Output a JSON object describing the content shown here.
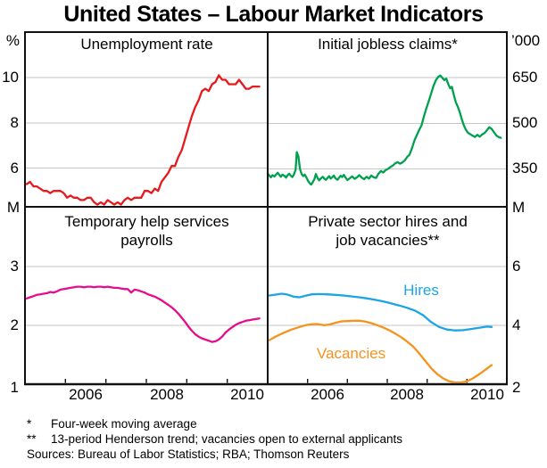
{
  "title": "United States – Labour Market Indicators",
  "colors": {
    "red": "#e8191c",
    "green": "#00a14e",
    "magenta": "#e50c8d",
    "blue": "#1ba5e4",
    "orange": "#f6921e",
    "grid": "#c6c6c6",
    "axis": "#8f8f8f",
    "border": "#111111",
    "text": "#000000"
  },
  "footnotes": {
    "fn1": {
      "marker": "*",
      "text": "Four-week moving average"
    },
    "fn2": {
      "marker": "**",
      "text": "13-period Henderson trend; vacancies open to external applicants"
    },
    "sources": "Sources: Bureau of Labor Statistics; RBA; Thomson Reuters"
  },
  "chart_data": [
    {
      "type": "line",
      "position": "top-left",
      "title": "Unemployment rate",
      "unit": "%",
      "yaxis_side": "left",
      "ylim": [
        4.3,
        12
      ],
      "yticks": [
        6,
        8,
        10
      ],
      "xlim": [
        2005,
        2011
      ],
      "show_xaxis": false,
      "series": [
        {
          "name": "Unemployment rate",
          "color": "red",
          "start": 2005.042,
          "step": 0.083333,
          "values": [
            5.3,
            5.4,
            5.2,
            5.2,
            5.1,
            5.0,
            5.0,
            4.9,
            5.0,
            5.0,
            5.0,
            4.9,
            4.7,
            4.8,
            4.7,
            4.7,
            4.6,
            4.6,
            4.7,
            4.7,
            4.5,
            4.4,
            4.5,
            4.4,
            4.6,
            4.5,
            4.4,
            4.5,
            4.4,
            4.6,
            4.7,
            4.6,
            4.7,
            4.7,
            4.7,
            5.0,
            5.0,
            4.9,
            5.1,
            5.0,
            5.4,
            5.6,
            5.8,
            6.1,
            6.1,
            6.5,
            6.8,
            7.3,
            7.8,
            8.3,
            8.7,
            9.0,
            9.4,
            9.5,
            9.4,
            9.7,
            9.8,
            10.1,
            9.9,
            9.9,
            9.7,
            9.7,
            9.7,
            9.9,
            9.7,
            9.5,
            9.5,
            9.6,
            9.6,
            9.6
          ]
        }
      ]
    },
    {
      "type": "line",
      "position": "top-right",
      "title": "Initial jobless claims*",
      "unit": "’000",
      "yaxis_side": "right",
      "ylim": [
        225,
        800
      ],
      "yticks": [
        350,
        500,
        650
      ],
      "xlim": [
        2005,
        2011
      ],
      "show_xaxis": false,
      "series": [
        {
          "name": "Initial jobless claims (four-week moving average)",
          "color": "green",
          "points": [
            [
              2005.0,
              334
            ],
            [
              2005.04,
              328
            ],
            [
              2005.08,
              322
            ],
            [
              2005.12,
              329
            ],
            [
              2005.17,
              325
            ],
            [
              2005.21,
              331
            ],
            [
              2005.25,
              337
            ],
            [
              2005.29,
              330
            ],
            [
              2005.33,
              324
            ],
            [
              2005.37,
              331
            ],
            [
              2005.42,
              327
            ],
            [
              2005.46,
              321
            ],
            [
              2005.5,
              329
            ],
            [
              2005.54,
              334
            ],
            [
              2005.58,
              327
            ],
            [
              2005.62,
              323
            ],
            [
              2005.66,
              332
            ],
            [
              2005.7,
              347
            ],
            [
              2005.73,
              405
            ],
            [
              2005.77,
              391
            ],
            [
              2005.81,
              349
            ],
            [
              2005.85,
              333
            ],
            [
              2005.89,
              326
            ],
            [
              2005.93,
              331
            ],
            [
              2005.97,
              322
            ],
            [
              2006.01,
              311
            ],
            [
              2006.05,
              303
            ],
            [
              2006.09,
              298
            ],
            [
              2006.13,
              306
            ],
            [
              2006.17,
              316
            ],
            [
              2006.21,
              333
            ],
            [
              2006.25,
              320
            ],
            [
              2006.29,
              312
            ],
            [
              2006.33,
              318
            ],
            [
              2006.38,
              324
            ],
            [
              2006.42,
              318
            ],
            [
              2006.46,
              314
            ],
            [
              2006.5,
              320
            ],
            [
              2006.54,
              326
            ],
            [
              2006.58,
              318
            ],
            [
              2006.62,
              322
            ],
            [
              2006.66,
              328
            ],
            [
              2006.7,
              319
            ],
            [
              2006.75,
              314
            ],
            [
              2006.79,
              321
            ],
            [
              2006.83,
              327
            ],
            [
              2006.87,
              323
            ],
            [
              2006.91,
              330
            ],
            [
              2006.95,
              322
            ],
            [
              2007.0,
              313
            ],
            [
              2007.06,
              319
            ],
            [
              2007.12,
              325
            ],
            [
              2007.18,
              317
            ],
            [
              2007.24,
              322
            ],
            [
              2007.3,
              329
            ],
            [
              2007.36,
              321
            ],
            [
              2007.42,
              316
            ],
            [
              2007.48,
              324
            ],
            [
              2007.54,
              318
            ],
            [
              2007.6,
              328
            ],
            [
              2007.66,
              322
            ],
            [
              2007.72,
              320
            ],
            [
              2007.78,
              334
            ],
            [
              2007.84,
              343
            ],
            [
              2007.9,
              338
            ],
            [
              2007.96,
              346
            ],
            [
              2008.02,
              350
            ],
            [
              2008.08,
              356
            ],
            [
              2008.14,
              361
            ],
            [
              2008.2,
              368
            ],
            [
              2008.26,
              372
            ],
            [
              2008.32,
              367
            ],
            [
              2008.38,
              371
            ],
            [
              2008.44,
              378
            ],
            [
              2008.5,
              389
            ],
            [
              2008.56,
              397
            ],
            [
              2008.62,
              418
            ],
            [
              2008.68,
              443
            ],
            [
              2008.74,
              461
            ],
            [
              2008.8,
              478
            ],
            [
              2008.86,
              493
            ],
            [
              2008.92,
              523
            ],
            [
              2008.98,
              549
            ],
            [
              2009.04,
              573
            ],
            [
              2009.1,
              597
            ],
            [
              2009.16,
              623
            ],
            [
              2009.22,
              642
            ],
            [
              2009.28,
              653
            ],
            [
              2009.33,
              657
            ],
            [
              2009.38,
              650
            ],
            [
              2009.43,
              642
            ],
            [
              2009.48,
              647
            ],
            [
              2009.53,
              629
            ],
            [
              2009.58,
              615
            ],
            [
              2009.62,
              620
            ],
            [
              2009.67,
              593
            ],
            [
              2009.72,
              569
            ],
            [
              2009.77,
              554
            ],
            [
              2009.82,
              536
            ],
            [
              2009.87,
              513
            ],
            [
              2009.92,
              493
            ],
            [
              2009.97,
              479
            ],
            [
              2010.02,
              469
            ],
            [
              2010.08,
              464
            ],
            [
              2010.14,
              459
            ],
            [
              2010.2,
              455
            ],
            [
              2010.26,
              462
            ],
            [
              2010.32,
              456
            ],
            [
              2010.38,
              463
            ],
            [
              2010.44,
              468
            ],
            [
              2010.5,
              477
            ],
            [
              2010.56,
              487
            ],
            [
              2010.62,
              481
            ],
            [
              2010.68,
              470
            ],
            [
              2010.74,
              459
            ],
            [
              2010.8,
              454
            ],
            [
              2010.85,
              452
            ]
          ]
        }
      ]
    },
    {
      "type": "line",
      "position": "bottom-left",
      "title": "Temporary help services payrolls",
      "title_lines": [
        "Temporary help services",
        "payrolls"
      ],
      "unit": "M",
      "yaxis_side": "left",
      "ylim": [
        1,
        4.02
      ],
      "yticks": [
        1,
        2,
        3
      ],
      "xlim": [
        2005,
        2011
      ],
      "show_xaxis": true,
      "xticks": [
        2006,
        2007,
        2008,
        2009,
        2010
      ],
      "xtick_labels": [
        {
          "text": "2006",
          "x": 2006.5
        },
        {
          "text": "2008",
          "x": 2008.5
        },
        {
          "text": "2010",
          "x": 2010.5
        }
      ],
      "series": [
        {
          "name": "Temporary help services payrolls",
          "color": "magenta",
          "start": 2005.042,
          "step": 0.083333,
          "values": [
            2.46,
            2.48,
            2.5,
            2.52,
            2.53,
            2.54,
            2.55,
            2.57,
            2.56,
            2.58,
            2.61,
            2.62,
            2.63,
            2.64,
            2.65,
            2.66,
            2.66,
            2.65,
            2.66,
            2.66,
            2.65,
            2.66,
            2.66,
            2.65,
            2.66,
            2.65,
            2.64,
            2.64,
            2.63,
            2.62,
            2.62,
            2.56,
            2.61,
            2.6,
            2.58,
            2.56,
            2.53,
            2.51,
            2.49,
            2.46,
            2.43,
            2.39,
            2.35,
            2.31,
            2.26,
            2.2,
            2.13,
            2.06,
            1.98,
            1.91,
            1.85,
            1.81,
            1.78,
            1.76,
            1.74,
            1.72,
            1.73,
            1.76,
            1.81,
            1.88,
            1.93,
            1.97,
            2.01,
            2.04,
            2.06,
            2.08,
            2.09,
            2.1,
            2.11,
            2.12
          ]
        }
      ]
    },
    {
      "type": "line",
      "position": "bottom-right",
      "title": "Private sector hires and job vacancies**",
      "title_lines": [
        "Private sector hires and",
        "job vacancies**"
      ],
      "unit": "M",
      "yaxis_side": "right",
      "ylim": [
        2,
        8.04
      ],
      "yticks": [
        2,
        4,
        6
      ],
      "xlim": [
        2005,
        2011
      ],
      "show_xaxis": true,
      "xticks": [
        2006,
        2007,
        2008,
        2009,
        2010
      ],
      "xtick_labels": [
        {
          "text": "2006",
          "x": 2006.5
        },
        {
          "text": "2008",
          "x": 2008.5
        },
        {
          "text": "2010",
          "x": 2010.5
        }
      ],
      "series": [
        {
          "name": "Hires",
          "label": "Hires",
          "color": "blue",
          "points": [
            [
              2005.04,
              5.02
            ],
            [
              2005.2,
              5.05
            ],
            [
              2005.35,
              5.08
            ],
            [
              2005.5,
              5.05
            ],
            [
              2005.65,
              4.98
            ],
            [
              2005.8,
              4.96
            ],
            [
              2005.95,
              5.01
            ],
            [
              2006.1,
              5.06
            ],
            [
              2006.3,
              5.07
            ],
            [
              2006.5,
              5.06
            ],
            [
              2006.7,
              5.04
            ],
            [
              2006.9,
              5.02
            ],
            [
              2007.1,
              4.99
            ],
            [
              2007.3,
              4.96
            ],
            [
              2007.5,
              4.92
            ],
            [
              2007.7,
              4.87
            ],
            [
              2007.9,
              4.82
            ],
            [
              2008.1,
              4.75
            ],
            [
              2008.3,
              4.68
            ],
            [
              2008.5,
              4.6
            ],
            [
              2008.7,
              4.5
            ],
            [
              2008.9,
              4.35
            ],
            [
              2009.1,
              4.12
            ],
            [
              2009.3,
              3.95
            ],
            [
              2009.5,
              3.86
            ],
            [
              2009.7,
              3.83
            ],
            [
              2009.9,
              3.84
            ],
            [
              2010.1,
              3.88
            ],
            [
              2010.3,
              3.92
            ],
            [
              2010.5,
              3.96
            ],
            [
              2010.62,
              3.95
            ]
          ]
        },
        {
          "name": "Vacancies",
          "label": "Vacancies",
          "color": "orange",
          "points": [
            [
              2005.04,
              3.5
            ],
            [
              2005.2,
              3.62
            ],
            [
              2005.4,
              3.75
            ],
            [
              2005.6,
              3.86
            ],
            [
              2005.8,
              3.95
            ],
            [
              2005.95,
              4.01
            ],
            [
              2006.1,
              4.04
            ],
            [
              2006.25,
              4.05
            ],
            [
              2006.4,
              4.01
            ],
            [
              2006.55,
              4.03
            ],
            [
              2006.7,
              4.09
            ],
            [
              2006.85,
              4.14
            ],
            [
              2007.0,
              4.15
            ],
            [
              2007.15,
              4.16
            ],
            [
              2007.3,
              4.16
            ],
            [
              2007.45,
              4.13
            ],
            [
              2007.6,
              4.08
            ],
            [
              2007.75,
              4.01
            ],
            [
              2007.9,
              3.93
            ],
            [
              2008.05,
              3.84
            ],
            [
              2008.2,
              3.72
            ],
            [
              2008.35,
              3.6
            ],
            [
              2008.5,
              3.45
            ],
            [
              2008.65,
              3.28
            ],
            [
              2008.8,
              3.05
            ],
            [
              2008.95,
              2.8
            ],
            [
              2009.1,
              2.55
            ],
            [
              2009.25,
              2.35
            ],
            [
              2009.4,
              2.2
            ],
            [
              2009.55,
              2.1
            ],
            [
              2009.7,
              2.06
            ],
            [
              2009.85,
              2.06
            ],
            [
              2010.0,
              2.1
            ],
            [
              2010.15,
              2.2
            ],
            [
              2010.3,
              2.33
            ],
            [
              2010.45,
              2.48
            ],
            [
              2010.62,
              2.65
            ]
          ]
        }
      ]
    }
  ]
}
